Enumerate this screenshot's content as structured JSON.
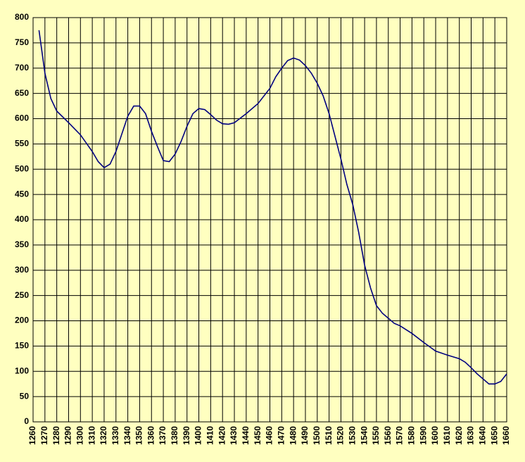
{
  "chart_data": {
    "type": "line",
    "x": [
      1265,
      1270,
      1275,
      1280,
      1290,
      1300,
      1310,
      1315,
      1320,
      1325,
      1330,
      1335,
      1340,
      1345,
      1350,
      1355,
      1360,
      1365,
      1370,
      1375,
      1380,
      1385,
      1390,
      1395,
      1400,
      1405,
      1410,
      1415,
      1420,
      1425,
      1430,
      1440,
      1450,
      1460,
      1465,
      1470,
      1475,
      1480,
      1485,
      1490,
      1495,
      1500,
      1505,
      1510,
      1515,
      1520,
      1525,
      1530,
      1535,
      1540,
      1545,
      1550,
      1555,
      1560,
      1565,
      1570,
      1580,
      1590,
      1600,
      1610,
      1620,
      1625,
      1630,
      1635,
      1640,
      1645,
      1650,
      1655,
      1660
    ],
    "series": [
      {
        "color": "#000080",
        "values": [
          775,
          690,
          640,
          615,
          592,
          568,
          535,
          515,
          503,
          510,
          535,
          570,
          605,
          625,
          625,
          610,
          575,
          545,
          517,
          515,
          530,
          555,
          585,
          610,
          620,
          618,
          608,
          597,
          590,
          589,
          592,
          610,
          630,
          660,
          683,
          700,
          715,
          720,
          716,
          705,
          690,
          670,
          645,
          610,
          565,
          520,
          470,
          430,
          375,
          310,
          265,
          230,
          215,
          205,
          195,
          190,
          175,
          157,
          140,
          132,
          125,
          118,
          107,
          95,
          85,
          75,
          75,
          80,
          95
        ]
      }
    ],
    "xlim": [
      1260,
      1660
    ],
    "xticks": [
      1260,
      1270,
      1280,
      1290,
      1300,
      1310,
      1320,
      1330,
      1340,
      1350,
      1360,
      1370,
      1380,
      1390,
      1400,
      1410,
      1420,
      1430,
      1440,
      1450,
      1460,
      1470,
      1480,
      1490,
      1500,
      1510,
      1520,
      1530,
      1540,
      1550,
      1560,
      1570,
      1580,
      1590,
      1600,
      1610,
      1620,
      1630,
      1640,
      1650,
      1660
    ],
    "ylim": [
      0,
      800
    ],
    "yticks": [
      0,
      50,
      100,
      150,
      200,
      250,
      300,
      350,
      400,
      450,
      500,
      550,
      600,
      650,
      700,
      750,
      800
    ],
    "grid": true
  }
}
